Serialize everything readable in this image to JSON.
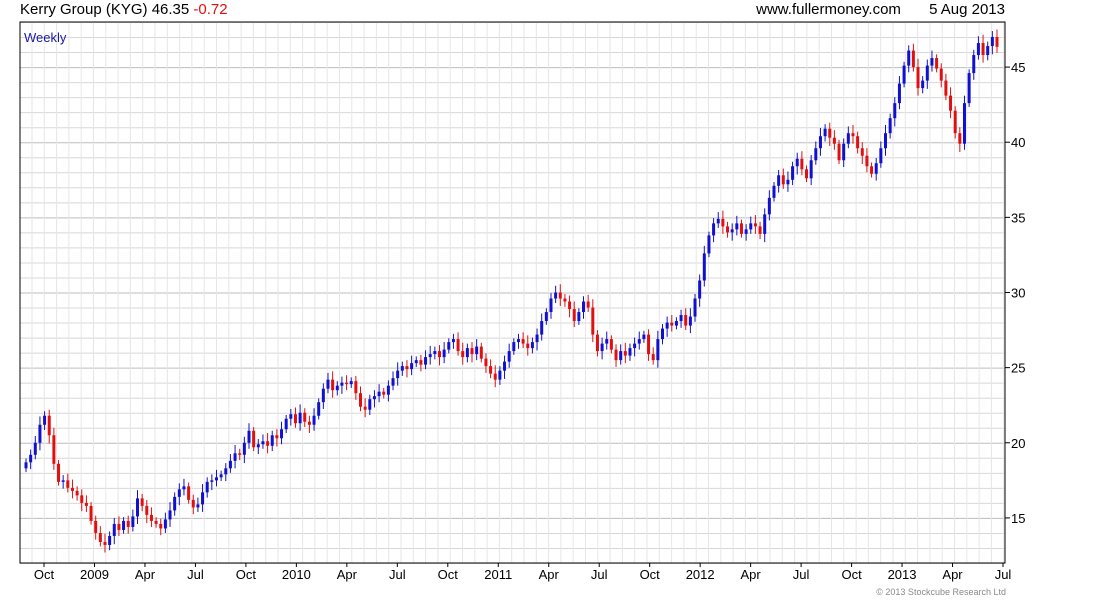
{
  "header": {
    "title": "Kerry Group (KYG)",
    "price": "46.35",
    "change": "-0.72",
    "source": "www.fullermoney.com",
    "date": "5 Aug 2013"
  },
  "footer": {
    "copyright": "© 2013 Stockcube Research Ltd"
  },
  "colors": {
    "up": "#1010d0",
    "down": "#e01010",
    "change": "#e01010",
    "frequency_label": "#1a1aa8",
    "grid": "#d8d8d8"
  },
  "chart_data": {
    "type": "candlestick",
    "frequency": "Weekly",
    "title": "Kerry Group (KYG)",
    "ylim": [
      12,
      48
    ],
    "y_ticks": [
      15,
      20,
      25,
      30,
      35,
      40,
      45
    ],
    "y_axis_side": "right",
    "grid": true,
    "x_tick_labels": [
      "Oct",
      "2009",
      "Apr",
      "Jul",
      "Oct",
      "2010",
      "Apr",
      "Jul",
      "Oct",
      "2011",
      "Apr",
      "Jul",
      "Oct",
      "2012",
      "Apr",
      "Jul",
      "Oct",
      "2013",
      "Apr",
      "Jul"
    ],
    "closes": [
      18.7,
      19.2,
      20.0,
      21.2,
      21.8,
      20.5,
      18.6,
      17.4,
      17.5,
      17.0,
      16.8,
      16.5,
      16.0,
      15.8,
      14.8,
      14.0,
      13.4,
      13.2,
      13.8,
      14.6,
      14.2,
      14.8,
      14.4,
      15.1,
      16.3,
      15.8,
      15.2,
      14.8,
      14.6,
      14.3,
      14.9,
      15.5,
      16.4,
      16.9,
      17.1,
      16.2,
      15.7,
      15.9,
      16.7,
      17.4,
      17.5,
      17.7,
      17.9,
      18.3,
      18.8,
      19.3,
      19.2,
      20.0,
      20.8,
      19.7,
      19.9,
      20.1,
      19.8,
      20.5,
      20.3,
      20.9,
      21.6,
      21.9,
      21.3,
      22.0,
      21.4,
      21.2,
      21.8,
      22.7,
      23.6,
      24.2,
      23.5,
      23.8,
      24.0,
      23.9,
      24.1,
      23.3,
      22.4,
      22.2,
      22.9,
      23.1,
      23.4,
      23.2,
      23.8,
      24.3,
      24.8,
      25.1,
      24.9,
      25.3,
      25.5,
      25.2,
      25.7,
      25.9,
      26.1,
      25.7,
      26.2,
      26.7,
      26.9,
      26.1,
      25.7,
      26.3,
      25.9,
      26.4,
      25.6,
      25.1,
      24.6,
      24.2,
      24.8,
      25.4,
      26.1,
      26.7,
      26.9,
      26.6,
      26.3,
      26.7,
      27.2,
      28.1,
      28.7,
      29.6,
      30.0,
      29.6,
      29.4,
      28.9,
      28.1,
      28.7,
      29.4,
      29.0,
      27.2,
      26.1,
      26.6,
      26.9,
      26.2,
      25.5,
      26.1,
      25.8,
      26.3,
      26.6,
      26.9,
      27.2,
      25.9,
      25.5,
      26.9,
      27.6,
      28.0,
      27.8,
      28.1,
      28.5,
      27.8,
      28.4,
      29.6,
      30.8,
      32.6,
      33.8,
      34.6,
      34.9,
      34.4,
      34.0,
      34.2,
      34.6,
      33.9,
      34.2,
      34.6,
      34.4,
      33.9,
      35.2,
      36.3,
      37.1,
      37.8,
      37.2,
      37.5,
      38.4,
      38.9,
      38.2,
      37.6,
      38.8,
      39.6,
      40.4,
      40.9,
      40.3,
      39.9,
      38.8,
      39.9,
      40.6,
      40.4,
      39.6,
      39.1,
      38.4,
      37.9,
      38.6,
      39.6,
      40.6,
      41.6,
      42.6,
      43.9,
      45.1,
      46.1,
      45.0,
      43.6,
      44.1,
      45.1,
      45.6,
      44.9,
      44.1,
      43.1,
      42.1,
      40.6,
      39.9,
      42.6,
      44.6,
      45.8,
      46.6,
      45.8,
      46.4,
      47.0,
      46.35
    ]
  }
}
